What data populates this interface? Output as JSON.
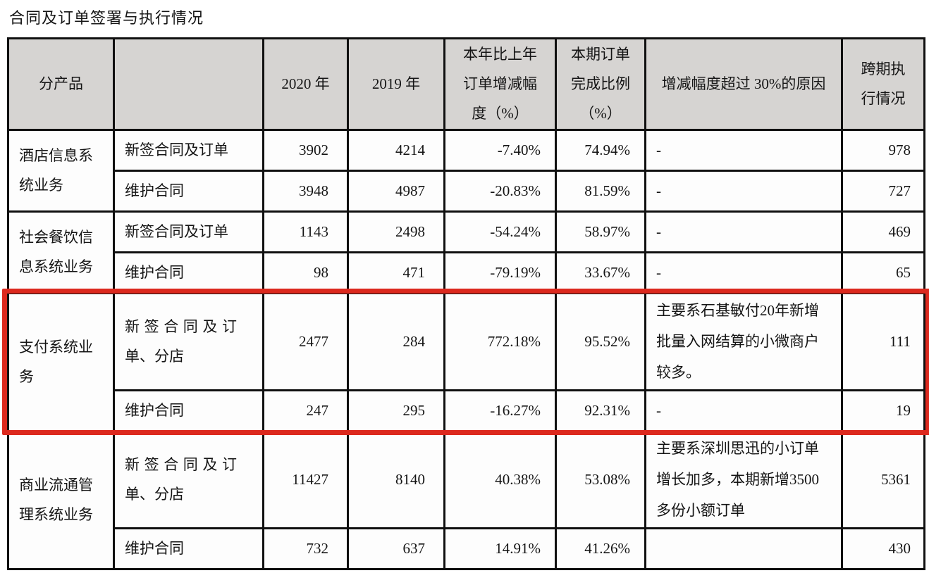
{
  "page": {
    "title": "合同及订单签署与执行情况"
  },
  "colors": {
    "highlight_box": "#dc291e",
    "header_bg": "#d6d4d2",
    "table_border": "#101010"
  },
  "table": {
    "headers": [
      "分产品",
      "",
      "2020 年",
      "2019 年",
      "本年比上年订单增减幅度（%）",
      "本期订单完成比例（%）",
      "增减幅度超过 30%的原因",
      "跨期执行情况"
    ],
    "groups": [
      {
        "name": "酒店信息系统业务",
        "highlight": false,
        "rows": [
          {
            "type": "新签合同及订单",
            "y2020": "3902",
            "y2019": "4214",
            "change": "-7.40%",
            "completion": "74.94%",
            "reason": "-",
            "cross": "978"
          },
          {
            "type": "维护合同",
            "y2020": "3948",
            "y2019": "4987",
            "change": "-20.83%",
            "completion": "81.59%",
            "reason": "-",
            "cross": "727"
          }
        ]
      },
      {
        "name": "社会餐饮信息系统业务",
        "highlight": false,
        "rows": [
          {
            "type": "新签合同及订单",
            "y2020": "1143",
            "y2019": "2498",
            "change": "-54.24%",
            "completion": "58.97%",
            "reason": "-",
            "cross": "469"
          },
          {
            "type": "维护合同",
            "y2020": "98",
            "y2019": "471",
            "change": "-79.19%",
            "completion": "33.67%",
            "reason": "-",
            "cross": "65"
          }
        ]
      },
      {
        "name": "支付系统业务",
        "highlight": true,
        "rows": [
          {
            "type": "新签合同及订单、分店",
            "y2020": "2477",
            "y2019": "284",
            "change": "772.18%",
            "completion": "95.52%",
            "reason": "主要系石基敏付20年新增批量入网结算的小微商户较多。",
            "cross": "111"
          },
          {
            "type": "维护合同",
            "y2020": "247",
            "y2019": "295",
            "change": "-16.27%",
            "completion": "92.31%",
            "reason": "-",
            "cross": "19"
          }
        ]
      },
      {
        "name": "商业流通管理系统业务",
        "highlight": false,
        "rows": [
          {
            "type": "新签合同及订单、分店",
            "y2020": "11427",
            "y2019": "8140",
            "change": "40.38%",
            "completion": "53.08%",
            "reason": "主要系深圳思迅的小订单增长加多，本期新增3500多份小额订单",
            "cross": "5361"
          },
          {
            "type": "维护合同",
            "y2020": "732",
            "y2019": "637",
            "change": "14.91%",
            "completion": "41.26%",
            "reason": "",
            "cross": "430"
          }
        ]
      }
    ]
  }
}
